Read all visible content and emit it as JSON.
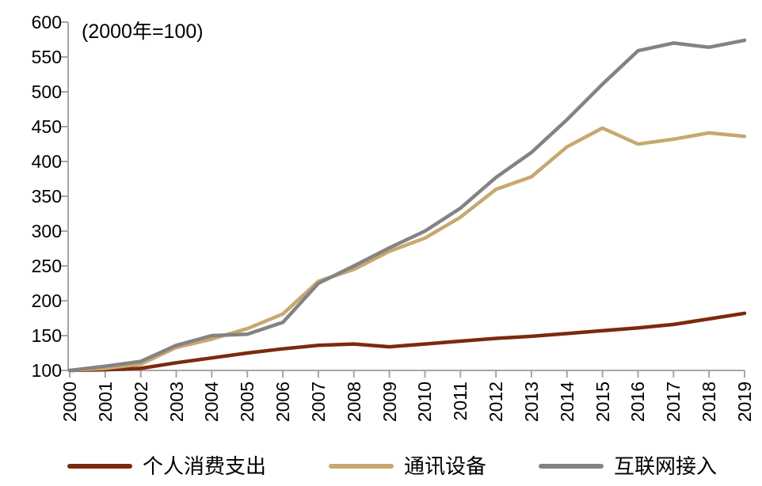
{
  "annotation": "(2000年=100)",
  "colors": {
    "axis": "#A6A6A6",
    "text": "#000000",
    "background": "#FFFFFF",
    "series_pce": "#7B2A0F",
    "series_telecom": "#C9A770",
    "series_internet": "#838383"
  },
  "chart_data": {
    "type": "line",
    "title": "",
    "xlabel": "",
    "ylabel": "",
    "annotation": "(2000年=100)",
    "x": [
      2000,
      2001,
      2002,
      2003,
      2004,
      2005,
      2006,
      2007,
      2008,
      2009,
      2010,
      2011,
      2012,
      2013,
      2014,
      2015,
      2016,
      2017,
      2018,
      2019
    ],
    "series": [
      {
        "name": "个人消费支出",
        "color": "#7B2A0F",
        "values": [
          100,
          101,
          103,
          111,
          118,
          125,
          131,
          136,
          138,
          134,
          138,
          142,
          146,
          149,
          153,
          157,
          161,
          166,
          174,
          182
        ]
      },
      {
        "name": "通讯设备",
        "color": "#C9A770",
        "values": [
          100,
          103,
          109,
          133,
          145,
          160,
          181,
          228,
          245,
          271,
          290,
          320,
          360,
          378,
          421,
          448,
          425,
          432,
          441,
          436
        ]
      },
      {
        "name": "互联网接入",
        "color": "#838383",
        "values": [
          100,
          106,
          113,
          136,
          150,
          152,
          169,
          225,
          250,
          276,
          300,
          333,
          377,
          413,
          460,
          511,
          559,
          570,
          564,
          574
        ]
      }
    ],
    "ylim": [
      100,
      600
    ],
    "ytick_step": 50,
    "grid": false,
    "legend_position": "bottom"
  }
}
